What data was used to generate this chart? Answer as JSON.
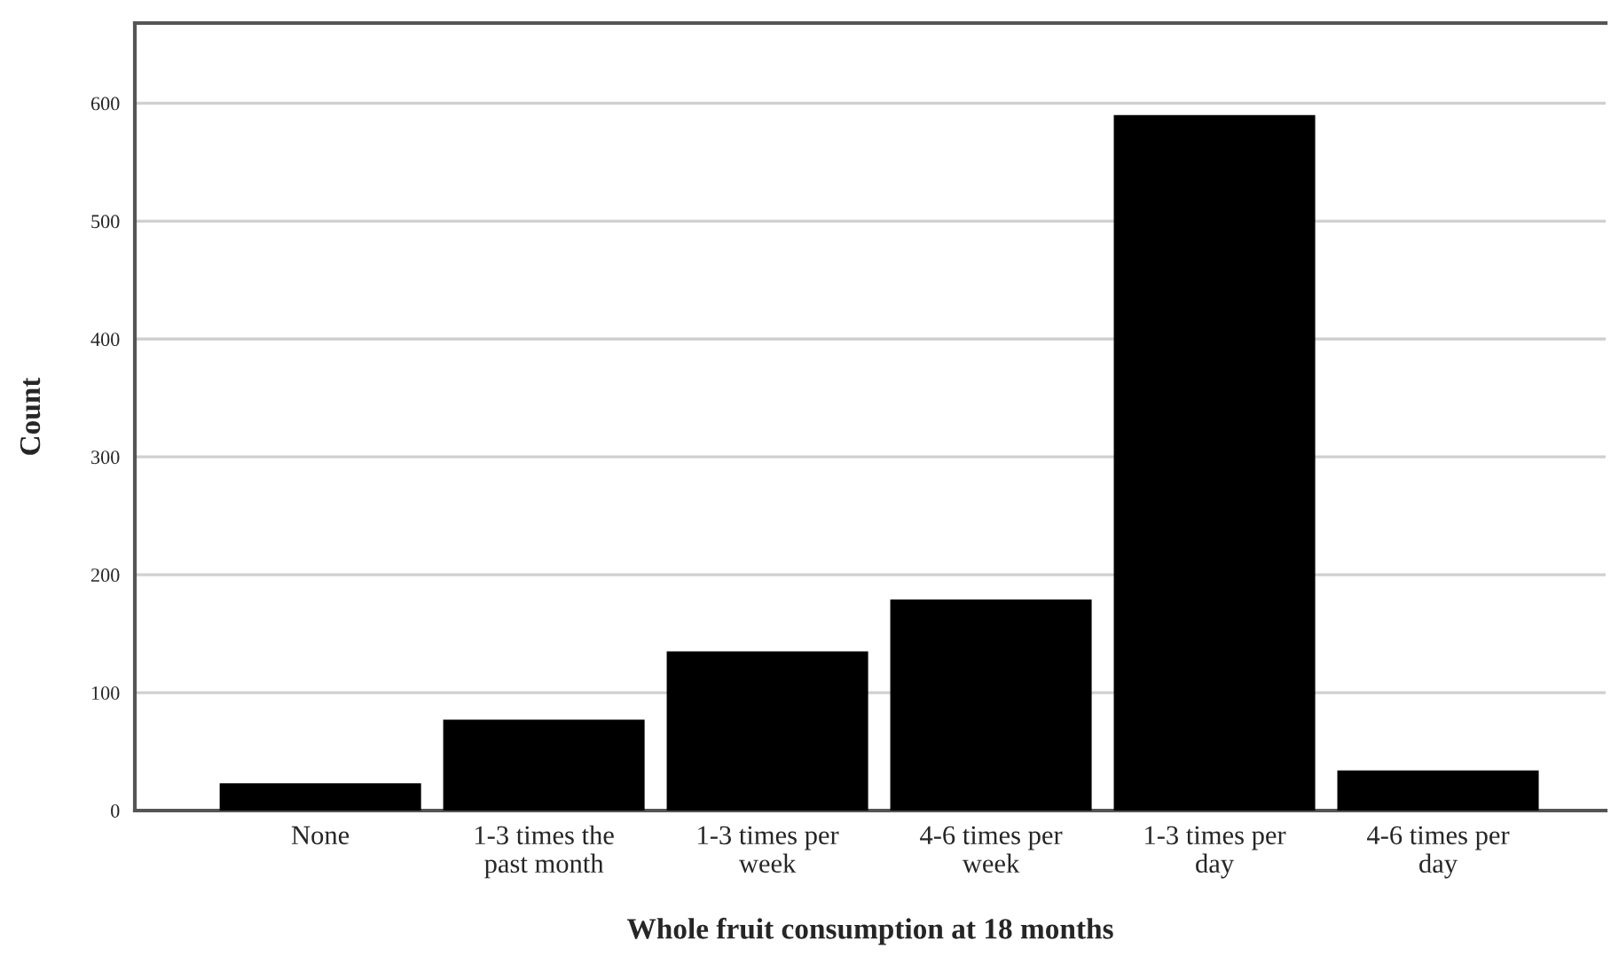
{
  "chart_data": {
    "type": "bar",
    "xlabel": "Whole fruit consumption at 18 months",
    "ylabel": "Count",
    "categories": [
      "None",
      "1-3 times the\npast month",
      "1-3 times per\nweek",
      "4-6 times per\nweek",
      "1-3 times per\nday",
      "4-6 times per\nday"
    ],
    "values": [
      22,
      76,
      134,
      178,
      589,
      33
    ],
    "color": "#000000",
    "ylim": [
      0,
      668
    ],
    "yticks": [
      0,
      100,
      200,
      300,
      400,
      500,
      600
    ],
    "grid": "y",
    "legend": false
  }
}
